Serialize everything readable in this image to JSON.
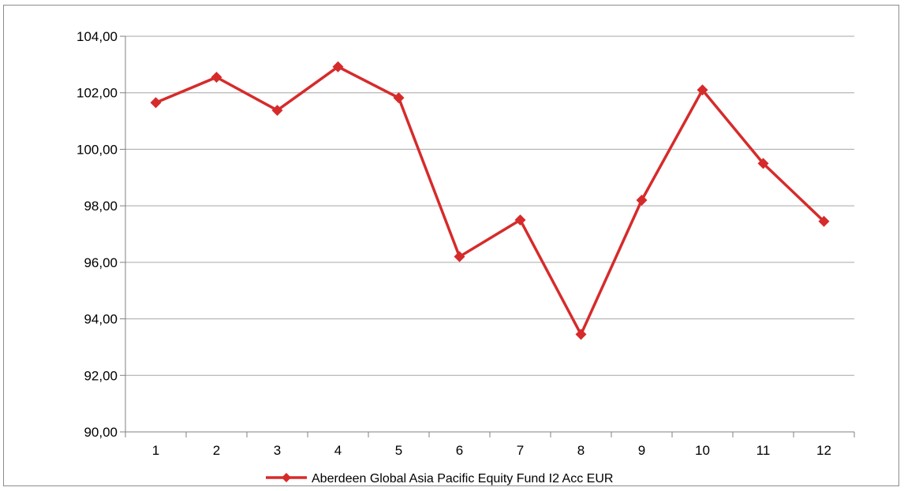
{
  "chart_data": {
    "type": "line",
    "title": "",
    "xlabel": "",
    "ylabel": "",
    "categories": [
      "1",
      "2",
      "3",
      "4",
      "5",
      "6",
      "7",
      "8",
      "9",
      "10",
      "11",
      "12"
    ],
    "series": [
      {
        "name": "Aberdeen Global Asia Pacific Equity Fund I2 Acc EUR",
        "values": [
          101.65,
          102.55,
          101.38,
          102.92,
          101.82,
          96.2,
          97.5,
          93.45,
          98.2,
          102.1,
          99.5,
          97.45
        ],
        "color": "#d62b2b",
        "marker": "diamond"
      }
    ],
    "ylim": [
      90,
      104
    ],
    "yticks": [
      90,
      92,
      94,
      96,
      98,
      100,
      102,
      104
    ],
    "ytick_labels": [
      "90,00",
      "92,00",
      "94,00",
      "96,00",
      "98,00",
      "100,00",
      "102,00",
      "104,00"
    ],
    "grid": true,
    "legend": "bottom"
  }
}
